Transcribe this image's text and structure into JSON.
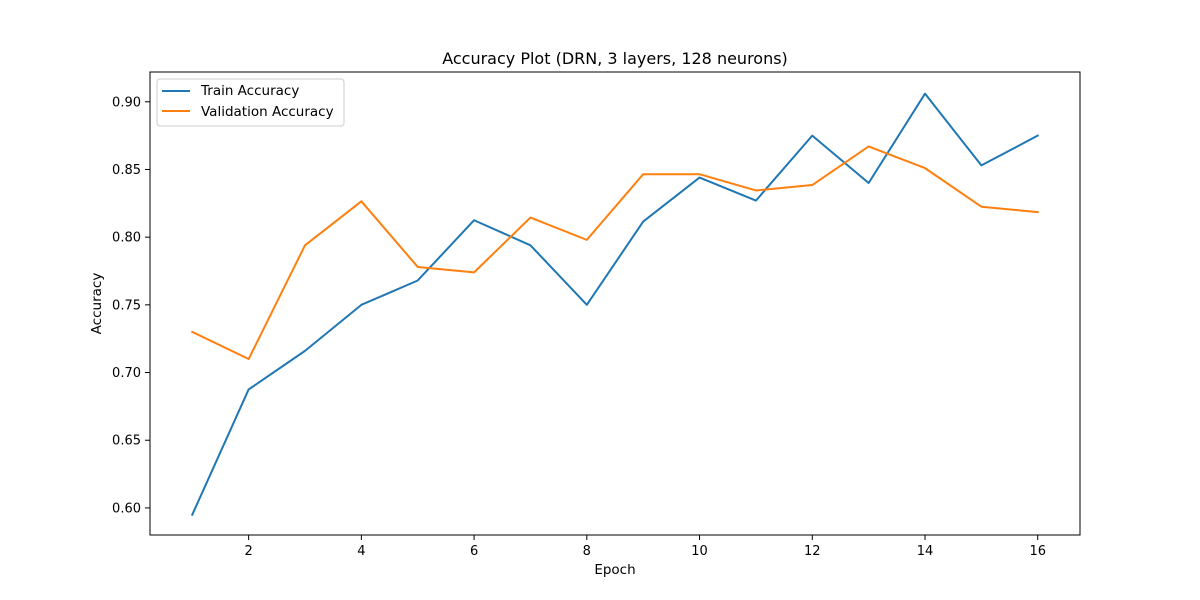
{
  "chart_data": {
    "type": "line",
    "title": "Accuracy Plot (DRN, 3 layers, 128 neurons)",
    "xlabel": "Epoch",
    "ylabel": "Accuracy",
    "x": [
      1,
      2,
      3,
      4,
      5,
      6,
      7,
      8,
      9,
      10,
      11,
      12,
      13,
      14,
      15,
      16
    ],
    "xlim": [
      0.25,
      16.75
    ],
    "ylim": [
      0.58,
      0.922
    ],
    "xticks": [
      2,
      4,
      6,
      8,
      10,
      12,
      14,
      16
    ],
    "yticks": [
      0.6,
      0.65,
      0.7,
      0.75,
      0.8,
      0.85,
      0.9
    ],
    "ytick_labels": [
      "0.60",
      "0.65",
      "0.70",
      "0.75",
      "0.80",
      "0.85",
      "0.90"
    ],
    "grid": false,
    "legend_position": "top-left",
    "series": [
      {
        "name": "Train Accuracy",
        "color": "#1f77b4",
        "values": [
          0.595,
          0.6875,
          0.716,
          0.75,
          0.768,
          0.8125,
          0.794,
          0.75,
          0.8115,
          0.844,
          0.827,
          0.875,
          0.84,
          0.906,
          0.853,
          0.875
        ]
      },
      {
        "name": "Validation Accuracy",
        "color": "#ff7f0e",
        "values": [
          0.73,
          0.71,
          0.794,
          0.8265,
          0.778,
          0.774,
          0.8145,
          0.798,
          0.8465,
          0.8465,
          0.8345,
          0.8385,
          0.867,
          0.851,
          0.8225,
          0.8185
        ]
      }
    ]
  }
}
